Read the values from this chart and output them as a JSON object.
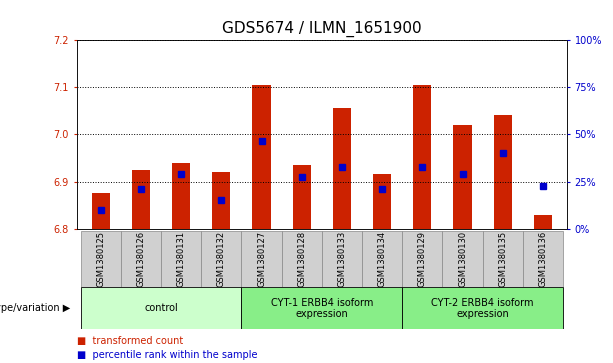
{
  "title": "GDS5674 / ILMN_1651900",
  "samples": [
    "GSM1380125",
    "GSM1380126",
    "GSM1380131",
    "GSM1380132",
    "GSM1380127",
    "GSM1380128",
    "GSM1380133",
    "GSM1380134",
    "GSM1380129",
    "GSM1380130",
    "GSM1380135",
    "GSM1380136"
  ],
  "bar_heights": [
    6.875,
    6.925,
    6.94,
    6.92,
    7.105,
    6.935,
    7.055,
    6.915,
    7.105,
    7.02,
    7.04,
    6.83
  ],
  "blue_dot_values": [
    6.84,
    6.885,
    6.915,
    6.86,
    6.985,
    6.91,
    6.93,
    6.885,
    6.93,
    6.915,
    6.96,
    6.89
  ],
  "ylim": [
    6.8,
    7.2
  ],
  "yticks": [
    6.8,
    6.9,
    7.0,
    7.1,
    7.2
  ],
  "right_yticks": [
    0,
    25,
    50,
    75,
    100
  ],
  "bar_color": "#CC2200",
  "dot_color": "#0000CC",
  "bar_bottom": 6.8,
  "groups": [
    {
      "label": "control",
      "start": 0,
      "end": 4,
      "color": "#CCFFCC"
    },
    {
      "label": "CYT-1 ERBB4 isoform\nexpression",
      "start": 4,
      "end": 8,
      "color": "#88EE88"
    },
    {
      "label": "CYT-2 ERBB4 isoform\nexpression",
      "start": 8,
      "end": 12,
      "color": "#88EE88"
    }
  ],
  "legend_items": [
    {
      "label": "transformed count",
      "color": "#CC2200"
    },
    {
      "label": "percentile rank within the sample",
      "color": "#0000CC"
    }
  ],
  "xlabel_group": "genotype/variation",
  "title_fontsize": 11,
  "tick_fontsize": 7,
  "label_fontsize": 8
}
